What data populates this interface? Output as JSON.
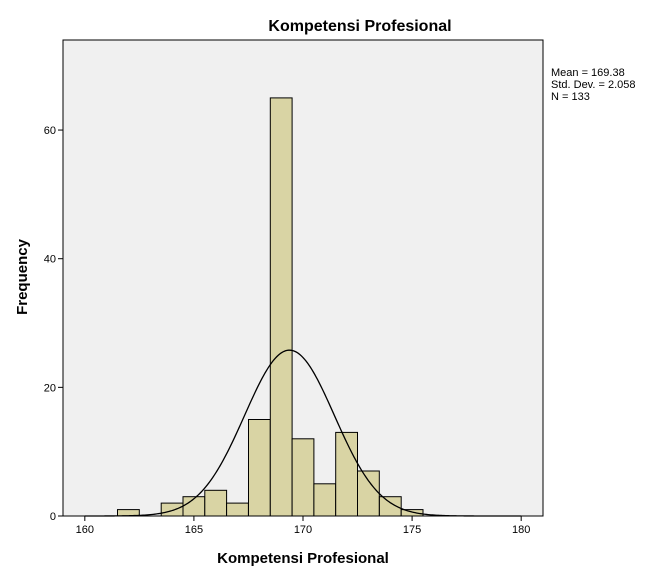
{
  "chart_data": {
    "type": "bar",
    "title": "Kompetensi Profesional",
    "xlabel": "Kompetensi Profesional",
    "ylabel": "Frequency",
    "xlim": [
      159,
      181
    ],
    "ylim": [
      0,
      74
    ],
    "x_ticks": [
      "160",
      "165",
      "170",
      "175",
      "180"
    ],
    "y_ticks": [
      "0",
      "20",
      "40",
      "60"
    ],
    "bin_width": 1,
    "bins": [
      {
        "start": 161.5,
        "count": 1
      },
      {
        "start": 162.5,
        "count": 0
      },
      {
        "start": 163.5,
        "count": 2
      },
      {
        "start": 164.5,
        "count": 3
      },
      {
        "start": 165.5,
        "count": 4
      },
      {
        "start": 166.5,
        "count": 2
      },
      {
        "start": 167.5,
        "count": 15
      },
      {
        "start": 168.5,
        "count": 65
      },
      {
        "start": 169.5,
        "count": 12
      },
      {
        "start": 170.5,
        "count": 5
      },
      {
        "start": 171.5,
        "count": 13
      },
      {
        "start": 172.5,
        "count": 7
      },
      {
        "start": 173.5,
        "count": 3
      },
      {
        "start": 174.5,
        "count": 1
      }
    ],
    "normal_curve": {
      "mean": 169.38,
      "std": 2.058,
      "n": 133
    },
    "stats_text": [
      "Mean = 169.38",
      "Std. Dev. = 2.058",
      "N = 133"
    ],
    "bar_color": "#d9d4a4",
    "plot_background": "#f0f0f0",
    "grid": false
  }
}
